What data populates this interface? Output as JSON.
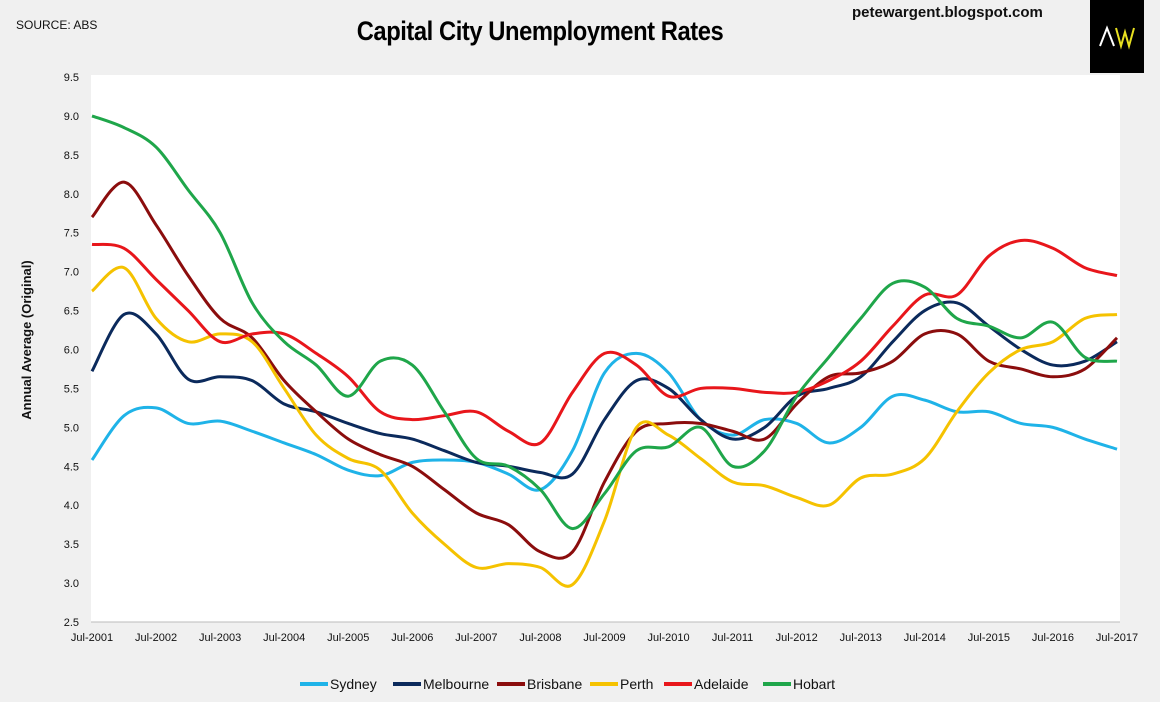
{
  "header": {
    "source": "SOURCE: ABS",
    "blog": "petewargent.blogspot.com",
    "logo_text": "AW"
  },
  "chart_data": {
    "type": "line",
    "title": "Capital City Unemployment Rates",
    "xlabel": "",
    "ylabel": "Annual Average (Original)",
    "ylim": [
      2.5,
      9.5
    ],
    "yticks": [
      "2.5",
      "3.0",
      "3.5",
      "4.0",
      "4.5",
      "5.0",
      "5.5",
      "6.0",
      "6.5",
      "7.0",
      "7.5",
      "8.0",
      "8.5",
      "9.0",
      "9.5"
    ],
    "xticks": [
      "Jul-2001",
      "Jul-2002",
      "Jul-2003",
      "Jul-2004",
      "Jul-2005",
      "Jul-2006",
      "Jul-2007",
      "Jul-2008",
      "Jul-2009",
      "Jul-2010",
      "Jul-2011",
      "Jul-2012",
      "Jul-2013",
      "Jul-2014",
      "Jul-2015",
      "Jul-2016",
      "Jul-2017"
    ],
    "x": [
      "Jul-2001",
      "Jan-2002",
      "Jul-2002",
      "Jan-2003",
      "Jul-2003",
      "Jan-2004",
      "Jul-2004",
      "Jan-2005",
      "Jul-2005",
      "Jan-2006",
      "Jul-2006",
      "Jan-2007",
      "Jul-2007",
      "Jan-2008",
      "Jul-2008",
      "Jan-2009",
      "Jul-2009",
      "Jan-2010",
      "Jul-2010",
      "Jan-2011",
      "Jul-2011",
      "Jan-2012",
      "Jul-2012",
      "Jan-2013",
      "Jul-2013",
      "Jan-2014",
      "Jul-2014",
      "Jan-2015",
      "Jul-2015",
      "Jan-2016",
      "Jul-2016",
      "Jan-2017",
      "Jul-2017"
    ],
    "grid": false,
    "legend": "bottom",
    "series": [
      {
        "name": "Sydney",
        "color": "#1fb3e8",
        "values": [
          4.58,
          5.15,
          5.25,
          5.05,
          5.08,
          4.95,
          4.8,
          4.65,
          4.45,
          4.38,
          4.55,
          4.58,
          4.55,
          4.4,
          4.2,
          4.7,
          5.7,
          5.95,
          5.7,
          5.1,
          4.9,
          5.1,
          5.05,
          4.8,
          5.0,
          5.4,
          5.35,
          5.2,
          5.2,
          5.05,
          5.0,
          4.85,
          4.72
        ]
      },
      {
        "name": "Melbourne",
        "color": "#0b2a5c",
        "values": [
          5.72,
          6.45,
          6.2,
          5.62,
          5.65,
          5.6,
          5.3,
          5.2,
          5.05,
          4.92,
          4.85,
          4.7,
          4.55,
          4.5,
          4.42,
          4.4,
          5.1,
          5.6,
          5.5,
          5.1,
          4.85,
          5.0,
          5.4,
          5.5,
          5.65,
          6.1,
          6.5,
          6.6,
          6.3,
          6.0,
          5.8,
          5.85,
          6.1
        ]
      },
      {
        "name": "Brisbane",
        "color": "#8b0d0d",
        "values": [
          7.7,
          8.15,
          7.6,
          6.95,
          6.4,
          6.15,
          5.6,
          5.2,
          4.85,
          4.65,
          4.5,
          4.2,
          3.9,
          3.75,
          3.4,
          3.4,
          4.3,
          4.95,
          5.05,
          5.05,
          4.95,
          4.85,
          5.3,
          5.65,
          5.7,
          5.85,
          6.2,
          6.2,
          5.85,
          5.75,
          5.65,
          5.75,
          6.15
        ]
      },
      {
        "name": "Perth",
        "color": "#f5c200",
        "values": [
          6.75,
          7.05,
          6.4,
          6.1,
          6.2,
          6.1,
          5.5,
          4.9,
          4.6,
          4.45,
          3.9,
          3.5,
          3.2,
          3.25,
          3.2,
          2.98,
          3.8,
          5.0,
          4.9,
          4.6,
          4.3,
          4.25,
          4.1,
          4.0,
          4.35,
          4.4,
          4.6,
          5.2,
          5.7,
          6.0,
          6.1,
          6.4,
          6.45
        ]
      },
      {
        "name": "Adelaide",
        "color": "#e8161b",
        "values": [
          7.35,
          7.3,
          6.9,
          6.5,
          6.1,
          6.2,
          6.2,
          5.95,
          5.65,
          5.2,
          5.1,
          5.15,
          5.2,
          4.95,
          4.8,
          5.45,
          5.95,
          5.8,
          5.4,
          5.5,
          5.5,
          5.45,
          5.45,
          5.6,
          5.85,
          6.3,
          6.7,
          6.7,
          7.2,
          7.4,
          7.3,
          7.05,
          6.95
        ]
      },
      {
        "name": "Hobart",
        "color": "#1fa64a",
        "values": [
          9.0,
          8.85,
          8.6,
          8.05,
          7.5,
          6.6,
          6.1,
          5.8,
          5.4,
          5.85,
          5.8,
          5.2,
          4.6,
          4.5,
          4.2,
          3.7,
          4.15,
          4.7,
          4.75,
          5.0,
          4.5,
          4.7,
          5.4,
          5.9,
          6.4,
          6.85,
          6.8,
          6.4,
          6.3,
          6.15,
          6.35,
          5.9,
          5.85
        ]
      }
    ]
  }
}
